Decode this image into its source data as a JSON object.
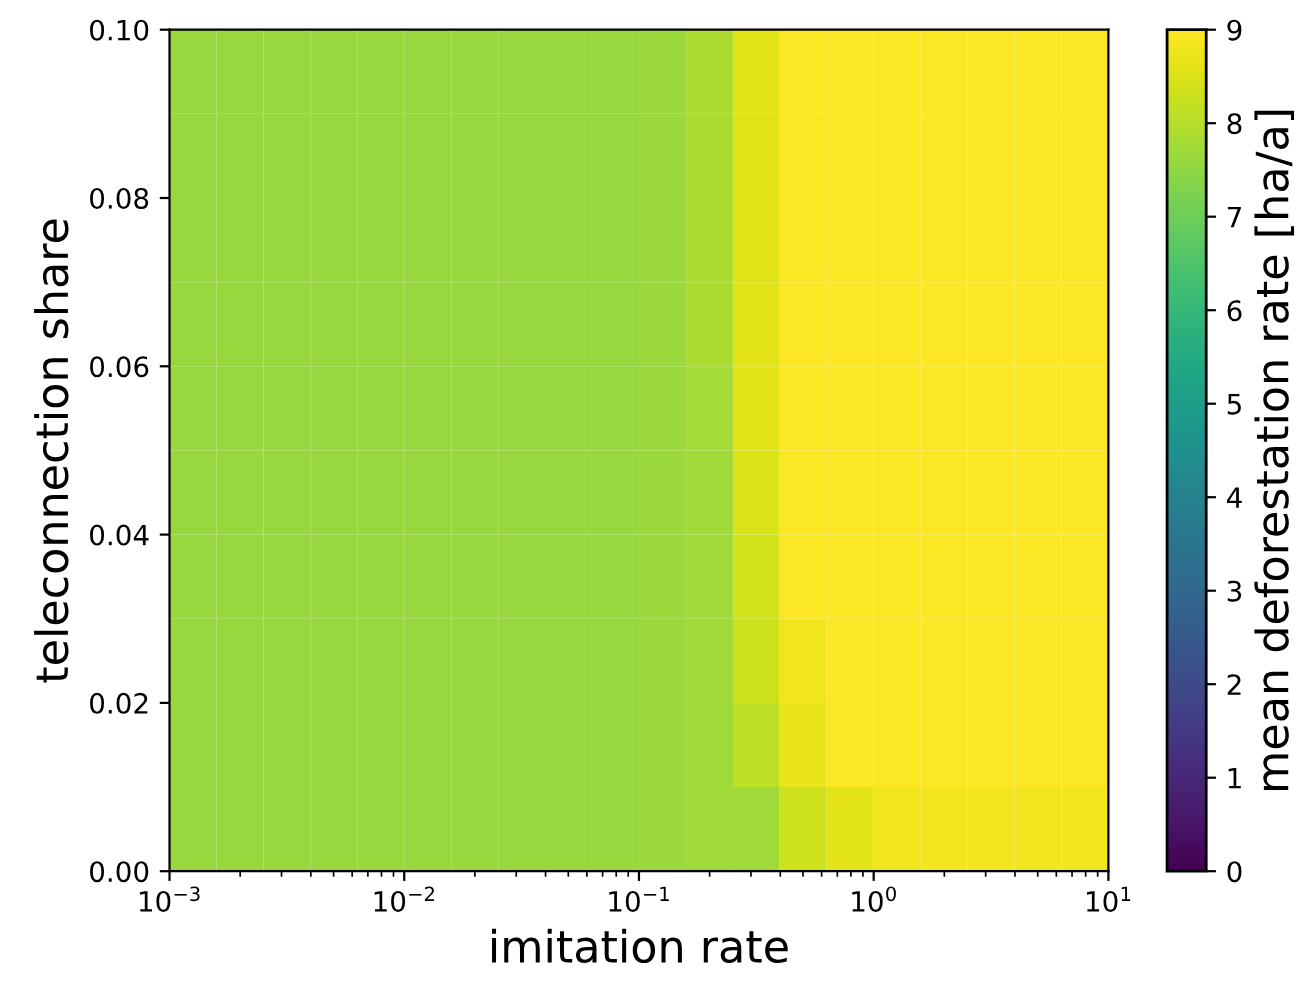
{
  "chart_data": {
    "type": "heatmap",
    "xlabel": "imitation rate",
    "ylabel": "teleconnection share",
    "clabel": "mean deforestation rate [ha/a]",
    "log": "x",
    "xlim": [
      0.001,
      10
    ],
    "xticks": [
      {
        "value": 0.001,
        "label": "10$^{−3}$"
      },
      {
        "value": 0.01,
        "label": "10$^{−2}$"
      },
      {
        "value": 0.1,
        "label": "10$^{−1}$"
      },
      {
        "value": 1,
        "label": "10$^{0}$"
      },
      {
        "value": 10,
        "label": "10$^{1}$"
      }
    ],
    "ylim": [
      0,
      0.1
    ],
    "yticks": [
      {
        "value": 0,
        "label": "0.00"
      },
      {
        "value": 0.02,
        "label": "0.02"
      },
      {
        "value": 0.04,
        "label": "0.04"
      },
      {
        "value": 0.06,
        "label": "0.06"
      },
      {
        "value": 0.08,
        "label": "0.08"
      },
      {
        "value": 0.1,
        "label": "0.10"
      }
    ],
    "clim": [
      0,
      9
    ],
    "cticks": [
      0,
      1,
      2,
      3,
      4,
      5,
      6,
      7,
      8,
      9
    ],
    "x": [
      0.00126,
      0.002,
      0.00316,
      0.00501,
      0.00794,
      0.0126,
      0.02,
      0.0316,
      0.0501,
      0.0794,
      0.126,
      0.2,
      0.316,
      0.501,
      0.794,
      1.26,
      2,
      3.16,
      5.01,
      7.94
    ],
    "y": [
      0.095,
      0.085,
      0.075,
      0.065,
      0.055,
      0.045,
      0.035,
      0.025,
      0.015,
      0.005
    ],
    "cells": [
      [
        7.6,
        7.6,
        7.6,
        7.6,
        7.6,
        7.6,
        7.6,
        7.6,
        7.6,
        7.6,
        7.65,
        7.9,
        8.6,
        8.95,
        8.95,
        8.95,
        8.95,
        8.95,
        8.95,
        8.95
      ],
      [
        7.6,
        7.6,
        7.6,
        7.6,
        7.6,
        7.6,
        7.6,
        7.6,
        7.6,
        7.6,
        7.65,
        7.9,
        8.6,
        8.95,
        8.95,
        8.95,
        8.95,
        8.95,
        8.95,
        8.95
      ],
      [
        7.6,
        7.6,
        7.6,
        7.6,
        7.6,
        7.6,
        7.6,
        7.6,
        7.6,
        7.6,
        7.65,
        7.9,
        8.6,
        8.95,
        8.95,
        8.95,
        8.95,
        8.95,
        8.95,
        8.95
      ],
      [
        7.6,
        7.6,
        7.6,
        7.6,
        7.6,
        7.6,
        7.6,
        7.6,
        7.6,
        7.6,
        7.65,
        7.9,
        8.6,
        8.95,
        8.95,
        8.95,
        8.95,
        8.95,
        8.95,
        8.95
      ],
      [
        7.6,
        7.6,
        7.6,
        7.6,
        7.6,
        7.6,
        7.6,
        7.6,
        7.6,
        7.6,
        7.65,
        7.8,
        8.6,
        8.95,
        8.95,
        8.95,
        8.95,
        8.95,
        8.95,
        8.95
      ],
      [
        7.6,
        7.6,
        7.6,
        7.6,
        7.6,
        7.6,
        7.6,
        7.6,
        7.6,
        7.6,
        7.65,
        7.7,
        8.5,
        8.95,
        8.95,
        8.95,
        8.95,
        8.95,
        8.95,
        8.95
      ],
      [
        7.6,
        7.6,
        7.6,
        7.6,
        7.6,
        7.6,
        7.6,
        7.6,
        7.6,
        7.6,
        7.65,
        7.7,
        8.4,
        8.95,
        8.95,
        8.95,
        8.95,
        8.95,
        8.95,
        8.95
      ],
      [
        7.6,
        7.6,
        7.6,
        7.6,
        7.6,
        7.6,
        7.6,
        7.6,
        7.6,
        7.6,
        7.65,
        7.7,
        8.3,
        8.8,
        8.95,
        8.95,
        8.95,
        8.95,
        8.95,
        8.95
      ],
      [
        7.6,
        7.6,
        7.6,
        7.6,
        7.6,
        7.6,
        7.6,
        7.6,
        7.6,
        7.6,
        7.65,
        7.7,
        8.1,
        8.7,
        8.95,
        8.95,
        8.95,
        8.95,
        8.95,
        8.95
      ],
      [
        7.6,
        7.6,
        7.6,
        7.6,
        7.6,
        7.6,
        7.6,
        7.6,
        7.6,
        7.6,
        7.65,
        7.7,
        7.7,
        8.3,
        8.6,
        8.8,
        8.85,
        8.85,
        8.8,
        8.8
      ]
    ]
  }
}
